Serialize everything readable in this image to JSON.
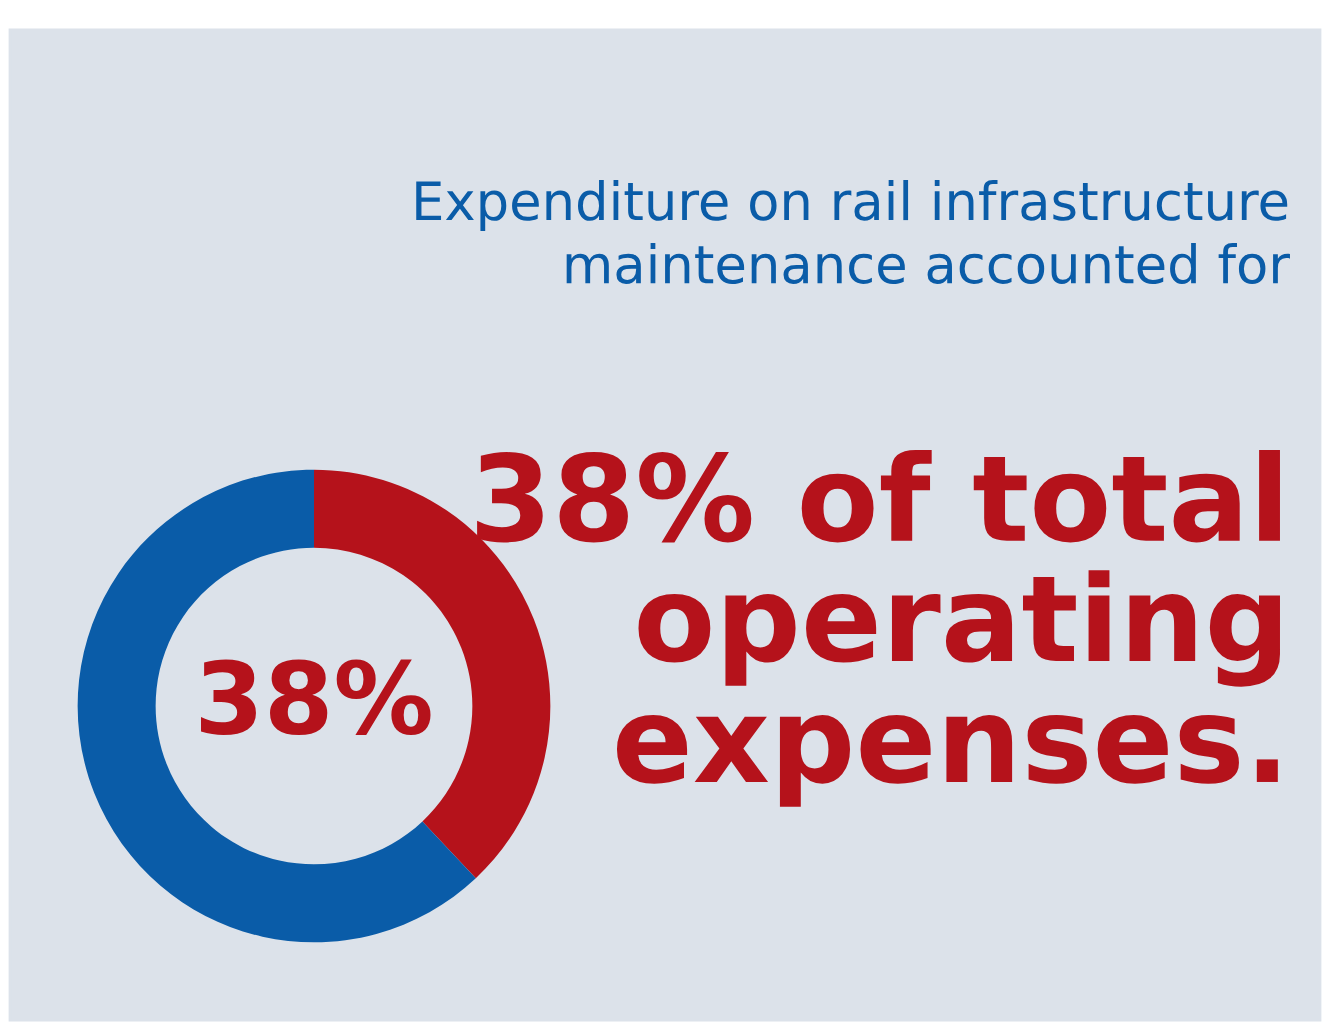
{
  "chart_data": {
    "type": "donut",
    "title": "Expenditure on rail infrastructure\nmaintenance accounted for",
    "subtitle": "38% of total\noperating\nexpenses.",
    "categories": [
      null,
      null
    ],
    "values": [
      38,
      62
    ],
    "colors": [
      "#b5121b",
      "#0a5ca8"
    ],
    "annotations": [
      "38%"
    ],
    "legend": false
  }
}
